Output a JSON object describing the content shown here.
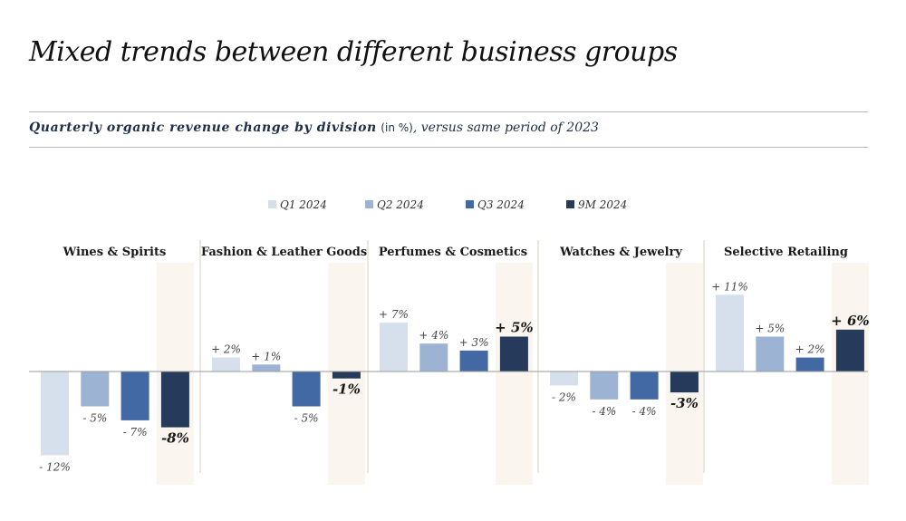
{
  "title": "Mixed trends between different business groups",
  "subtitle": {
    "lead": "Quarterly organic revenue change by division",
    "unit": "(in %)",
    "rest": ", versus same period of 2023"
  },
  "colors": {
    "Q1 2024": "#d6e0ec",
    "Q2 2024": "#9cb3d3",
    "Q3 2024": "#4269a4",
    "9M 2024": "#263a5b",
    "highlight": "#faf6ef",
    "divider": "#d2d0c2",
    "axis": "#9a9a9a"
  },
  "chart_data": {
    "type": "bar",
    "series_names": [
      "Q1 2024",
      "Q2 2024",
      "Q3 2024",
      "9M 2024"
    ],
    "legend_position": "top-center",
    "y_unit": "%",
    "groups": [
      {
        "name": "Wines & Spirits",
        "values": [
          -12,
          -5,
          -7,
          -8
        ],
        "labels": [
          "- 12%",
          "- 5%",
          "- 7%",
          "-8%"
        ]
      },
      {
        "name": "Fashion & Leather Goods",
        "values": [
          2,
          1,
          -5,
          -1
        ],
        "labels": [
          "+ 2%",
          "+ 1%",
          "- 5%",
          "-1%"
        ]
      },
      {
        "name": "Perfumes & Cosmetics",
        "values": [
          7,
          4,
          3,
          5
        ],
        "labels": [
          "+ 7%",
          "+ 4%",
          "+ 3%",
          "+ 5%"
        ]
      },
      {
        "name": "Watches & Jewelry",
        "values": [
          -2,
          -4,
          -4,
          -3
        ],
        "labels": [
          "- 2%",
          "- 4%",
          "- 4%",
          "-3%"
        ]
      },
      {
        "name": "Selective Retailing",
        "values": [
          11,
          5,
          2,
          6
        ],
        "labels": [
          "+ 11%",
          "+ 5%",
          "+ 2%",
          "+ 6%"
        ]
      }
    ]
  }
}
